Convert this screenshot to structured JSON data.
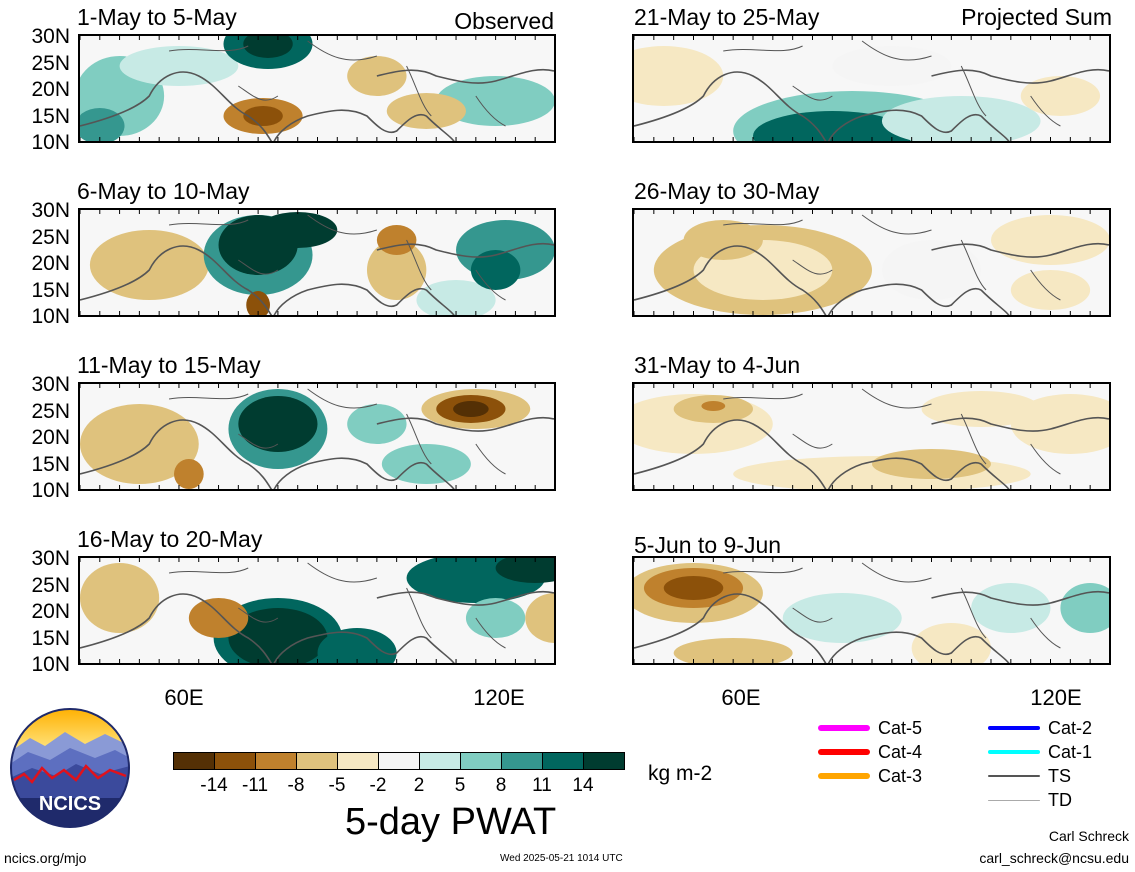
{
  "headers": {
    "left": "Observed",
    "right": "Projected Sum"
  },
  "panels_left": [
    {
      "title": "1-May to 5-May",
      "scene": "a"
    },
    {
      "title": "6-May to 10-May",
      "scene": "b"
    },
    {
      "title": "11-May to 15-May",
      "scene": "c"
    },
    {
      "title": "16-May to 20-May",
      "scene": "d"
    }
  ],
  "panels_right": [
    {
      "title": "21-May to 25-May",
      "scene": "e"
    },
    {
      "title": "26-May to 30-May",
      "scene": "f"
    },
    {
      "title": "31-May to 4-Jun",
      "scene": "g"
    },
    {
      "title": "5-Jun to 9-Jun",
      "scene": "h"
    }
  ],
  "y_ticks": [
    "30N",
    "25N",
    "20N",
    "15N",
    "10N"
  ],
  "x_ticks": [
    "60E",
    "120E"
  ],
  "colorbar": {
    "colors": [
      "#543005",
      "#8c510a",
      "#bf812d",
      "#dfc27d",
      "#f6e8c3",
      "#f5f5f5",
      "#c7eae5",
      "#80cdc1",
      "#35978f",
      "#01665e",
      "#003c30"
    ],
    "labels": [
      "-14",
      "-11",
      "-8",
      "-5",
      "-2",
      "2",
      "5",
      "8",
      "11",
      "14"
    ],
    "units": "kg m-2",
    "title": "5-day PWAT"
  },
  "legend": [
    {
      "label": "Cat-5",
      "color": "#ff00ff",
      "weight": 6
    },
    {
      "label": "Cat-4",
      "color": "#ff0000",
      "weight": 6
    },
    {
      "label": "Cat-3",
      "color": "#ffa500",
      "weight": 6
    },
    {
      "label": "Cat-2",
      "color": "#0000ff",
      "weight": 4
    },
    {
      "label": "Cat-1",
      "color": "#00ffff",
      "weight": 4
    },
    {
      "label": "TS",
      "color": "#555555",
      "weight": 2
    },
    {
      "label": "TD",
      "color": "#aaaaaa",
      "weight": 1
    }
  ],
  "logo": {
    "text": "NCICS"
  },
  "footer": {
    "left": "ncics.org/mjo",
    "center": "Wed 2025-05-21 1014 UTC",
    "author": "Carl Schreck",
    "email": "carl_schreck@ncsu.edu"
  }
}
